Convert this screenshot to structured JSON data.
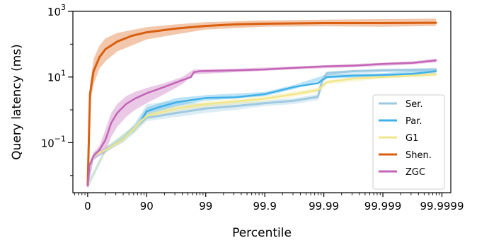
{
  "chart_data": {
    "type": "line",
    "xlabel": "Percentile",
    "ylabel": "Query latency (ms)",
    "yscale": "log",
    "ylim": [
      0.003,
      1000
    ],
    "x_tick_labels": [
      "0",
      "90",
      "99",
      "99.9",
      "99.99",
      "99.999",
      "99.9999"
    ],
    "y_ticks": [
      {
        "base": "10",
        "exp": "3",
        "value": 1000
      },
      {
        "base": "10",
        "exp": "1",
        "value": 10
      },
      {
        "base": "10",
        "exp": "−1",
        "value": 0.1
      }
    ],
    "x_unit_note": "x values are in nines of percentile: 0 = 0th, 1 = 90th, 2 = 99th, 3 = 99.9th, 4 = 99.99th, 5 = 99.999th, 6 = 99.9999th",
    "xlim": [
      -0.25,
      6.15
    ],
    "legend_position": "lower right",
    "series": [
      {
        "name": "Ser.",
        "color": "#9ecae1",
        "width": 3,
        "points": [
          [
            0,
            0.005
          ],
          [
            0.03,
            0.02
          ],
          [
            0.1,
            0.04
          ],
          [
            0.3,
            0.06
          ],
          [
            0.6,
            0.12
          ],
          [
            0.8,
            0.28
          ],
          [
            0.9,
            0.4
          ],
          [
            1.0,
            0.58
          ],
          [
            1.2,
            0.65
          ],
          [
            1.5,
            0.8
          ],
          [
            2.0,
            1.1
          ],
          [
            2.5,
            1.3
          ],
          [
            3.0,
            1.6
          ],
          [
            3.5,
            1.9
          ],
          [
            3.9,
            2.5
          ],
          [
            3.97,
            8
          ],
          [
            4.05,
            13
          ],
          [
            4.5,
            15
          ],
          [
            5.0,
            16
          ],
          [
            5.5,
            16.5
          ],
          [
            5.9,
            17
          ]
        ],
        "band": [
          [
            0,
            0.004,
            0.006
          ],
          [
            0.1,
            0.03,
            0.05
          ],
          [
            0.3,
            0.05,
            0.07
          ],
          [
            0.6,
            0.1,
            0.15
          ],
          [
            0.8,
            0.2,
            0.4
          ],
          [
            1.0,
            0.45,
            1.5
          ],
          [
            1.5,
            0.6,
            1.9
          ],
          [
            2.0,
            0.8,
            1.5
          ],
          [
            2.5,
            1.0,
            1.7
          ],
          [
            3.0,
            1.3,
            1.9
          ],
          [
            3.5,
            1.5,
            2.3
          ],
          [
            3.9,
            2.0,
            3.0
          ],
          [
            4.05,
            11,
            15
          ],
          [
            5.0,
            14,
            18
          ],
          [
            5.9,
            15,
            19
          ]
        ]
      },
      {
        "name": "Par.",
        "color": "#3fb0e8",
        "width": 2.5,
        "points": [
          [
            0,
            0.005
          ],
          [
            0.03,
            0.02
          ],
          [
            0.1,
            0.04
          ],
          [
            0.3,
            0.06
          ],
          [
            0.6,
            0.12
          ],
          [
            0.8,
            0.28
          ],
          [
            0.9,
            0.45
          ],
          [
            1.0,
            0.9
          ],
          [
            1.2,
            1.2
          ],
          [
            1.5,
            1.7
          ],
          [
            2.0,
            2.3
          ],
          [
            2.5,
            2.4
          ],
          [
            3.0,
            3.0
          ],
          [
            3.5,
            5.0
          ],
          [
            3.9,
            6.5
          ],
          [
            4.05,
            10
          ],
          [
            4.5,
            11
          ],
          [
            5.0,
            11.5
          ],
          [
            5.5,
            12.5
          ],
          [
            5.9,
            15
          ]
        ],
        "band": [
          [
            0,
            0.004,
            0.006
          ],
          [
            0.3,
            0.05,
            0.07
          ],
          [
            0.8,
            0.22,
            0.35
          ],
          [
            1.0,
            0.7,
            1.2
          ],
          [
            1.5,
            1.3,
            2.3
          ],
          [
            2.0,
            1.9,
            2.8
          ],
          [
            3.0,
            2.6,
            3.5
          ],
          [
            3.5,
            4.3,
            5.8
          ],
          [
            4.05,
            9,
            12
          ],
          [
            5.0,
            10,
            13
          ],
          [
            5.9,
            13,
            18
          ]
        ]
      },
      {
        "name": "G1",
        "color": "#f0e68c",
        "width": 2.5,
        "points": [
          [
            0,
            0.005
          ],
          [
            0.03,
            0.02
          ],
          [
            0.1,
            0.04
          ],
          [
            0.3,
            0.06
          ],
          [
            0.6,
            0.12
          ],
          [
            0.8,
            0.28
          ],
          [
            0.9,
            0.45
          ],
          [
            1.0,
            0.65
          ],
          [
            1.2,
            0.8
          ],
          [
            1.5,
            1.1
          ],
          [
            2.0,
            1.5
          ],
          [
            2.5,
            1.8
          ],
          [
            3.0,
            2.2
          ],
          [
            3.5,
            3.0
          ],
          [
            3.9,
            4.0
          ],
          [
            4.05,
            7
          ],
          [
            4.5,
            9
          ],
          [
            5.0,
            10
          ],
          [
            5.5,
            11
          ],
          [
            5.9,
            12
          ]
        ],
        "band": [
          [
            0,
            0.004,
            0.006
          ],
          [
            0.3,
            0.05,
            0.07
          ],
          [
            0.8,
            0.22,
            0.35
          ],
          [
            1.0,
            0.5,
            0.8
          ],
          [
            1.5,
            0.9,
            1.3
          ],
          [
            2.0,
            1.2,
            1.8
          ],
          [
            3.0,
            1.8,
            2.6
          ],
          [
            3.9,
            3.3,
            4.8
          ],
          [
            4.05,
            6,
            8
          ],
          [
            5.0,
            9,
            11.5
          ],
          [
            5.9,
            10.5,
            14
          ]
        ]
      },
      {
        "name": "Shen.",
        "color": "#d95f0e",
        "width": 3,
        "points": [
          [
            0,
            0.005
          ],
          [
            0.04,
            3
          ],
          [
            0.1,
            15
          ],
          [
            0.2,
            40
          ],
          [
            0.3,
            70
          ],
          [
            0.5,
            120
          ],
          [
            0.75,
            180
          ],
          [
            1.0,
            230
          ],
          [
            1.5,
            300
          ],
          [
            2.0,
            360
          ],
          [
            2.5,
            400
          ],
          [
            3.0,
            420
          ],
          [
            3.5,
            430
          ],
          [
            4.0,
            440
          ],
          [
            5.0,
            440
          ],
          [
            5.9,
            450
          ]
        ],
        "band": [
          [
            0,
            0.004,
            0.006
          ],
          [
            0.04,
            1.5,
            6
          ],
          [
            0.1,
            6,
            35
          ],
          [
            0.2,
            18,
            90
          ],
          [
            0.3,
            30,
            150
          ],
          [
            0.5,
            60,
            220
          ],
          [
            1.0,
            140,
            330
          ],
          [
            1.5,
            200,
            400
          ],
          [
            2.0,
            280,
            470
          ],
          [
            3.0,
            340,
            530
          ],
          [
            4.0,
            350,
            560
          ],
          [
            5.0,
            340,
            580
          ],
          [
            5.9,
            360,
            600
          ]
        ]
      },
      {
        "name": "ZGC",
        "color": "#c464b6",
        "width": 2.5,
        "points": [
          [
            0,
            0.005
          ],
          [
            0.03,
            0.02
          ],
          [
            0.1,
            0.04
          ],
          [
            0.2,
            0.06
          ],
          [
            0.3,
            0.12
          ],
          [
            0.4,
            0.4
          ],
          [
            0.5,
            0.8
          ],
          [
            0.65,
            1.5
          ],
          [
            0.8,
            2.2
          ],
          [
            1.0,
            3.2
          ],
          [
            1.3,
            5.0
          ],
          [
            1.6,
            8.0
          ],
          [
            1.75,
            10
          ],
          [
            1.8,
            14
          ],
          [
            1.9,
            15
          ],
          [
            2.5,
            16
          ],
          [
            3.0,
            17
          ],
          [
            3.5,
            19
          ],
          [
            4.0,
            21
          ],
          [
            4.5,
            22
          ],
          [
            5.0,
            25
          ],
          [
            5.5,
            27
          ],
          [
            5.9,
            32
          ]
        ],
        "band": [
          [
            0,
            0.004,
            0.006
          ],
          [
            0.1,
            0.03,
            0.05
          ],
          [
            0.2,
            0.04,
            0.08
          ],
          [
            0.3,
            0.05,
            0.25
          ],
          [
            0.4,
            0.15,
            0.8
          ],
          [
            0.5,
            0.3,
            1.5
          ],
          [
            0.65,
            0.6,
            2.6
          ],
          [
            0.8,
            1.0,
            3.5
          ],
          [
            1.0,
            1.6,
            4.6
          ],
          [
            1.3,
            3.0,
            6.5
          ],
          [
            1.6,
            6,
            10
          ],
          [
            1.8,
            12,
            17
          ],
          [
            2.5,
            14,
            18
          ],
          [
            3.5,
            17,
            21
          ],
          [
            4.5,
            20,
            25
          ],
          [
            5.5,
            24,
            30
          ],
          [
            5.9,
            28,
            36
          ]
        ]
      }
    ]
  }
}
